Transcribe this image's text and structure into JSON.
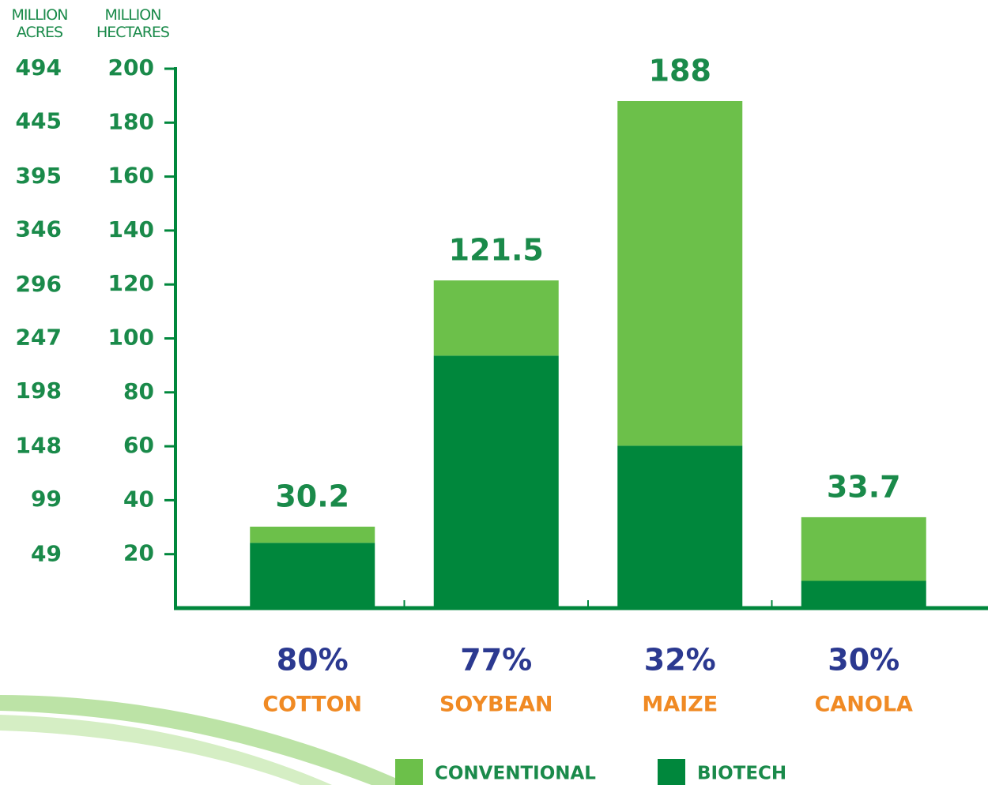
{
  "chart_data": {
    "type": "stacked_bar",
    "categories": [
      "COTTON",
      "SOYBEAN",
      "MAIZE",
      "CANOLA"
    ],
    "series": [
      {
        "name": "BIOTECH",
        "color": "#00873c",
        "values": [
          24.2,
          93.6,
          60.2,
          10.1
        ]
      },
      {
        "name": "CONVENTIONAL",
        "color": "#6cc04a",
        "values": [
          6.0,
          27.9,
          127.8,
          23.6
        ]
      }
    ],
    "legend_order": [
      1,
      0
    ],
    "totals": [
      30.2,
      121.5,
      188,
      33.7
    ],
    "adoption": {
      "values": [
        80,
        77,
        32,
        30
      ],
      "value_labels": [
        "80%",
        "77%",
        "32%",
        "30%"
      ]
    },
    "ylabel": "MILLION HECTARES",
    "y2label": "MILLION ACRES",
    "ylim": [
      0,
      200
    ],
    "yticks": [
      20,
      40,
      60,
      80,
      100,
      120,
      140,
      160,
      180,
      200
    ],
    "y2lim": [
      0,
      494
    ],
    "y2ticks": [
      49,
      99,
      148,
      198,
      247,
      296,
      346,
      395,
      445,
      494
    ],
    "grid": false
  }
}
